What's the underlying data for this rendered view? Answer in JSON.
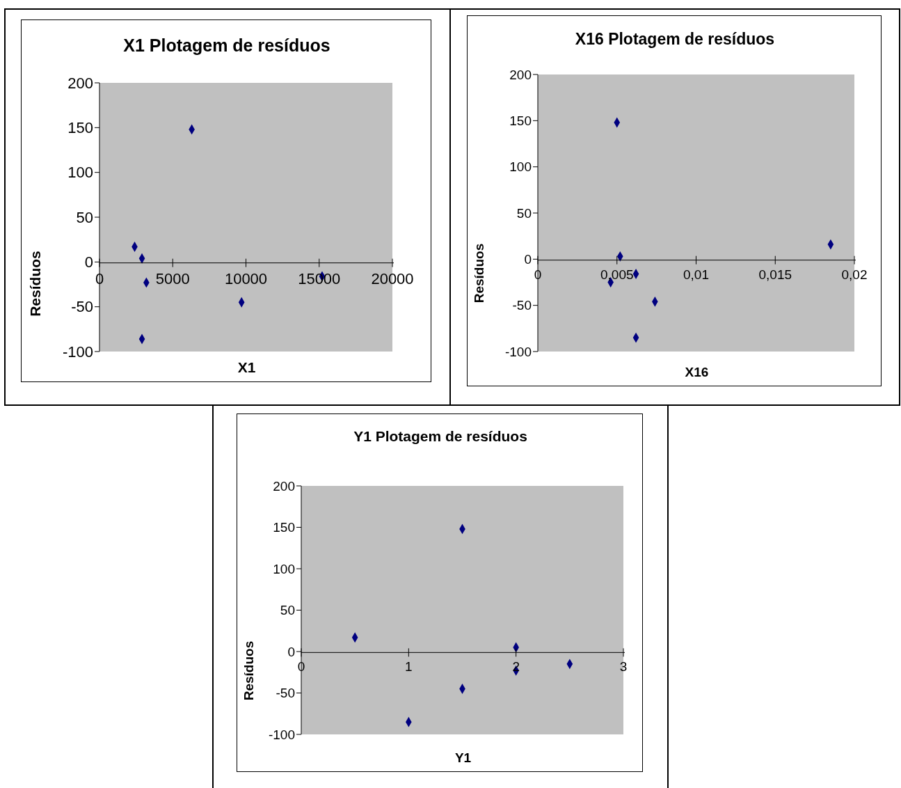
{
  "chart_data": [
    {
      "type": "scatter",
      "title": "X1 Plotagem de resíduos",
      "xlabel": "X1",
      "ylabel": "Resíduos",
      "marker": "diamond",
      "color": "#000080",
      "x": [
        2400,
        2900,
        3200,
        2900,
        6300,
        9700,
        15200
      ],
      "values": [
        17,
        4,
        -23,
        -86,
        148,
        -45,
        -16
      ],
      "xlim": [
        0,
        20000
      ],
      "xticks": [
        0,
        5000,
        10000,
        15000,
        20000
      ],
      "ylim": [
        -100,
        200
      ],
      "yticks": [
        -100,
        -50,
        0,
        50,
        100,
        150,
        200
      ]
    },
    {
      "type": "scatter",
      "title": "X16 Plotagem de resíduos",
      "xlabel": "X16",
      "ylabel": "Resíduos",
      "marker": "diamond",
      "color": "#000080",
      "x": [
        0.005,
        0.0052,
        0.0062,
        0.0046,
        0.0074,
        0.0062,
        0.0185
      ],
      "values": [
        148,
        3,
        -16,
        -25,
        -46,
        -85,
        16
      ],
      "xlim": [
        0,
        0.02
      ],
      "xticks": [
        0,
        {
          "value": 0.005,
          "label": "0,005"
        },
        {
          "value": 0.01,
          "label": "0,01"
        },
        {
          "value": 0.015,
          "label": "0,015"
        },
        {
          "value": 0.02,
          "label": "0,02"
        }
      ],
      "ylim": [
        -100,
        200
      ],
      "yticks": [
        -100,
        -50,
        0,
        50,
        100,
        150,
        200
      ]
    },
    {
      "type": "scatter",
      "title": "Y1 Plotagem de resíduos",
      "xlabel": "Y1",
      "ylabel": "Resíduos",
      "marker": "diamond",
      "color": "#000080",
      "x": [
        0.5,
        1.5,
        2,
        2,
        2.5,
        1.5,
        1
      ],
      "values": [
        17,
        148,
        5,
        -23,
        -15,
        -45,
        -85
      ],
      "xlim": [
        0,
        3
      ],
      "xticks": [
        0,
        1,
        2,
        3
      ],
      "ylim": [
        -100,
        200
      ],
      "yticks": [
        -100,
        -50,
        0,
        50,
        100,
        150,
        200
      ]
    }
  ]
}
